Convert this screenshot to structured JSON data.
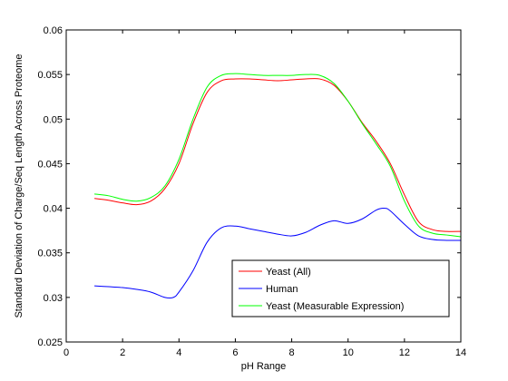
{
  "chart_data": {
    "type": "line",
    "title": "",
    "xlabel": "pH Range",
    "ylabel": "Standard Deviation of Charge/Seq Length Across Proteome",
    "xlim": [
      0,
      14
    ],
    "ylim": [
      0.025,
      0.06
    ],
    "xticks": [
      0,
      2,
      4,
      6,
      8,
      10,
      12,
      14
    ],
    "yticks": [
      0.025,
      0.03,
      0.035,
      0.04,
      0.045,
      0.05,
      0.055,
      0.06
    ],
    "xtick_labels": [
      "0",
      "2",
      "4",
      "6",
      "8",
      "10",
      "12",
      "14"
    ],
    "ytick_labels": [
      "0.025",
      "0.03",
      "0.035",
      "0.04",
      "0.045",
      "0.05",
      "0.055",
      "0.06"
    ],
    "grid": false,
    "legend": "bottom-right",
    "series": [
      {
        "name": "Yeast (All)",
        "color": "#ff0000",
        "x": [
          1.0,
          1.5,
          2.0,
          2.5,
          3.0,
          3.5,
          4.0,
          4.5,
          5.0,
          5.5,
          6.0,
          6.5,
          7.0,
          7.5,
          8.0,
          8.5,
          9.0,
          9.5,
          10.0,
          10.5,
          11.0,
          11.5,
          12.0,
          12.5,
          13.0,
          13.5,
          14.0
        ],
        "y": [
          0.0411,
          0.0409,
          0.0406,
          0.0404,
          0.0408,
          0.0422,
          0.045,
          0.0495,
          0.053,
          0.0543,
          0.0545,
          0.0545,
          0.0544,
          0.0543,
          0.0544,
          0.0545,
          0.0545,
          0.0538,
          0.052,
          0.0496,
          0.0475,
          0.045,
          0.0415,
          0.0385,
          0.0376,
          0.0374,
          0.0374
        ]
      },
      {
        "name": "Human",
        "color": "#0000ff",
        "x": [
          1.0,
          1.5,
          2.0,
          2.5,
          3.0,
          3.5,
          3.8,
          4.0,
          4.5,
          5.0,
          5.5,
          6.0,
          6.5,
          7.0,
          7.5,
          8.0,
          8.5,
          9.0,
          9.5,
          10.0,
          10.5,
          11.0,
          11.3,
          11.5,
          12.0,
          12.5,
          13.0,
          13.5,
          14.0
        ],
        "y": [
          0.0313,
          0.0312,
          0.0311,
          0.0309,
          0.0306,
          0.03,
          0.03,
          0.0306,
          0.033,
          0.0362,
          0.0378,
          0.038,
          0.0377,
          0.0374,
          0.0371,
          0.0369,
          0.0373,
          0.0381,
          0.0386,
          0.0383,
          0.0388,
          0.0398,
          0.04,
          0.0397,
          0.0382,
          0.0369,
          0.0365,
          0.0364,
          0.0364
        ]
      },
      {
        "name": "Yeast (Measurable Expression)",
        "color": "#00ff00",
        "x": [
          1.0,
          1.5,
          2.0,
          2.5,
          3.0,
          3.5,
          4.0,
          4.5,
          5.0,
          5.5,
          6.0,
          6.5,
          7.0,
          7.5,
          8.0,
          8.5,
          9.0,
          9.5,
          10.0,
          10.5,
          11.0,
          11.5,
          12.0,
          12.5,
          13.0,
          13.5,
          14.0
        ],
        "y": [
          0.0416,
          0.0414,
          0.041,
          0.0408,
          0.0412,
          0.0425,
          0.0455,
          0.05,
          0.0536,
          0.0549,
          0.0551,
          0.055,
          0.0549,
          0.0549,
          0.0549,
          0.055,
          0.0549,
          0.054,
          0.052,
          0.0495,
          0.0472,
          0.0447,
          0.0408,
          0.038,
          0.0372,
          0.037,
          0.0368
        ]
      }
    ]
  }
}
